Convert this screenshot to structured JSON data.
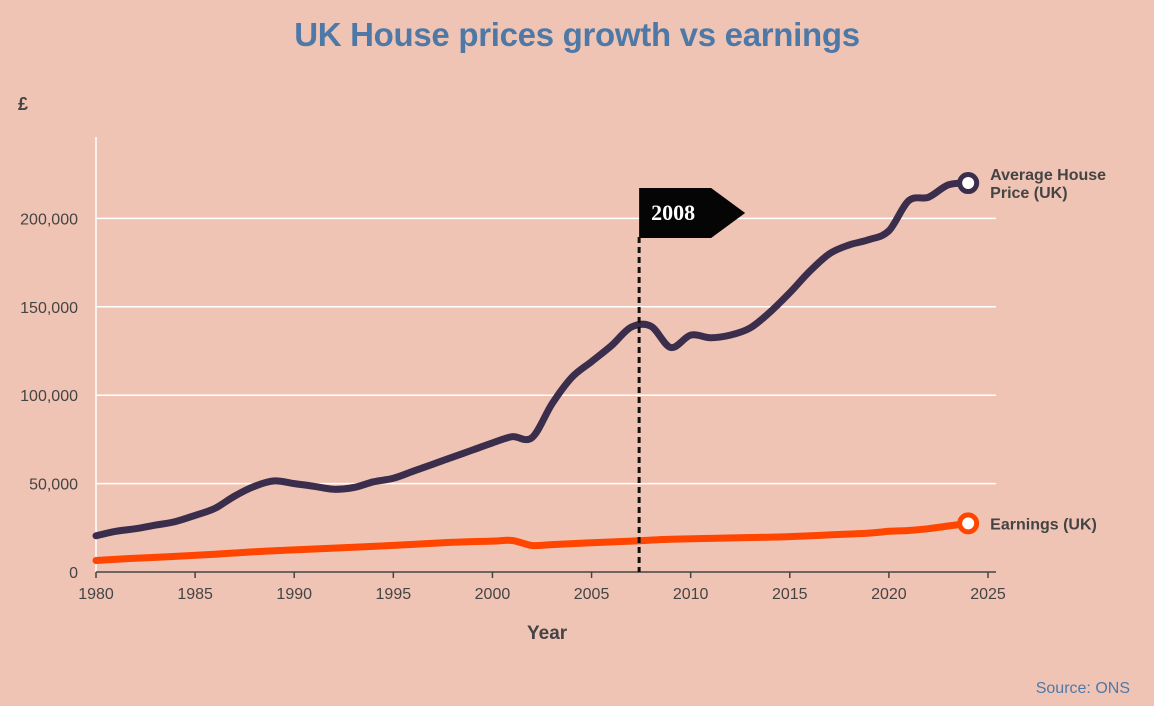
{
  "chart_data": {
    "type": "line",
    "title": "UK House prices growth vs earnings",
    "xlabel": "Year",
    "ylabel": "£",
    "xlim": [
      1980,
      2025
    ],
    "ylim": [
      0,
      245000
    ],
    "x_ticks": [
      1980,
      1985,
      1990,
      1995,
      2000,
      2005,
      2010,
      2015,
      2020,
      2025
    ],
    "y_ticks": [
      0,
      50000,
      100000,
      150000,
      200000
    ],
    "y_tick_labels": [
      "0",
      "50,000",
      "100,000",
      "150,000",
      "200,000"
    ],
    "grid": "horizontal",
    "series": [
      {
        "name": "Average House Price (UK)",
        "label_lines": [
          "Average House",
          "Price (UK)"
        ],
        "color": "#3b2e4c",
        "x": [
          1980,
          1981,
          1982,
          1983,
          1984,
          1985,
          1986,
          1987,
          1988,
          1989,
          1990,
          1991,
          1992,
          1993,
          1994,
          1995,
          1996,
          1997,
          1998,
          1999,
          2000,
          2001,
          2002,
          2003,
          2004,
          2005,
          2006,
          2007,
          2008,
          2009,
          2010,
          2011,
          2012,
          2013,
          2014,
          2015,
          2016,
          2017,
          2018,
          2019,
          2020,
          2021,
          2022,
          2023,
          2024
        ],
        "values": [
          20500,
          23000,
          24500,
          26500,
          28500,
          32000,
          36000,
          43000,
          48500,
          51500,
          50000,
          48500,
          46800,
          47800,
          51000,
          53000,
          57000,
          61000,
          65000,
          69000,
          73000,
          76500,
          76000,
          95000,
          110000,
          119000,
          128000,
          138500,
          139000,
          127000,
          134000,
          132500,
          134000,
          138000,
          147000,
          158000,
          170000,
          180000,
          185000,
          188000,
          193000,
          210000,
          212000,
          219000,
          220000
        ]
      },
      {
        "name": "Earnings (UK)",
        "label_lines": [
          "Earnings (UK)"
        ],
        "color": "#ff4500",
        "x": [
          1980,
          1982,
          1984,
          1986,
          1988,
          1990,
          1992,
          1994,
          1996,
          1998,
          2000,
          2001,
          2002,
          2003,
          2005,
          2007,
          2009,
          2011,
          2013,
          2015,
          2017,
          2019,
          2020,
          2021,
          2022,
          2023,
          2024
        ],
        "values": [
          6500,
          7800,
          8800,
          10000,
          11500,
          12500,
          13500,
          14500,
          15600,
          16800,
          17500,
          17800,
          15000,
          15500,
          16500,
          17500,
          18500,
          19000,
          19500,
          20000,
          21000,
          22000,
          23000,
          23500,
          24500,
          26000,
          27500
        ]
      }
    ],
    "annotations": [
      {
        "type": "vertical-dashed-line",
        "x": 2007.4,
        "label": "2008"
      }
    ]
  },
  "source": "Source: ONS"
}
